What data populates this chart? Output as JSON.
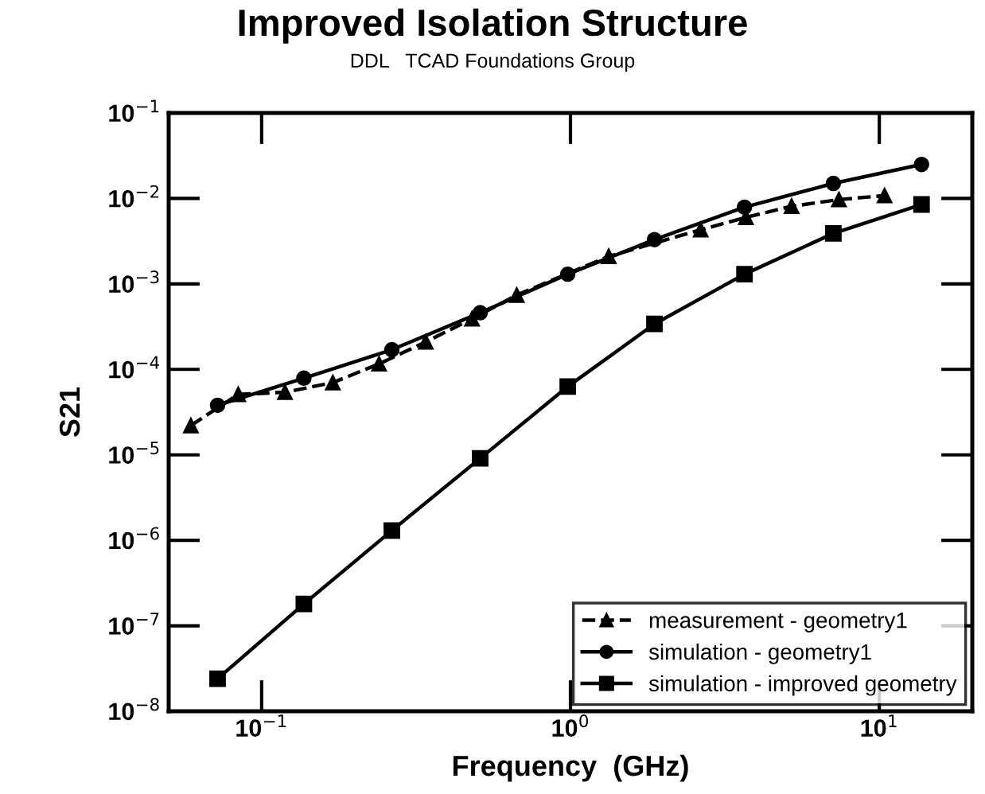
{
  "chart_data": {
    "type": "line",
    "title": "Improved Isolation Structure",
    "subtitle": "DDL   TCAD Foundations Group",
    "xlabel": "Frequency  (GHz)",
    "ylabel": "S21",
    "log": "xy",
    "grid": false,
    "legend": "bottom right",
    "xlim": [
      0.05,
      20
    ],
    "ylim": [
      1e-08,
      0.1
    ],
    "xticks": [
      {
        "value": 0.1,
        "label": "10$^{−1}$"
      },
      {
        "value": 1,
        "label": "10$^{0}$"
      },
      {
        "value": 10,
        "label": "10$^{1}$"
      }
    ],
    "yticks": [
      {
        "value": 1e-08,
        "label": "10$^{−8}$"
      },
      {
        "value": 1e-07,
        "label": "10$^{−7}$"
      },
      {
        "value": 1e-06,
        "label": "10$^{−6}$"
      },
      {
        "value": 1e-05,
        "label": "10$^{−5}$"
      },
      {
        "value": 0.0001,
        "label": "10$^{−4}$"
      },
      {
        "value": 0.001,
        "label": "10$^{−3}$"
      },
      {
        "value": 0.01,
        "label": "10$^{−2}$"
      },
      {
        "value": 0.1,
        "label": "10$^{−1}$"
      }
    ],
    "series": [
      {
        "name": "measurement - geometry1",
        "color": "#000000",
        "marker": "triangle",
        "line_style": "dashed",
        "x": [
          0.059,
          0.084,
          0.119,
          0.17,
          0.24,
          0.34,
          0.48,
          0.67,
          1.33,
          2.64,
          3.7,
          5.2,
          7.4,
          10.4
        ],
        "values": [
          2.2e-05,
          5.1e-05,
          5.4e-05,
          7e-05,
          0.000116,
          0.00021,
          0.00039,
          0.00074,
          0.0021,
          0.0043,
          0.006,
          0.0081,
          0.0097,
          0.0108
        ]
      },
      {
        "name": "simulation - geometry1",
        "color": "#000000",
        "marker": "circle",
        "line_style": "solid",
        "x": [
          0.072,
          0.137,
          0.264,
          0.51,
          0.98,
          1.87,
          3.66,
          7.1,
          13.7
        ],
        "values": [
          3.8e-05,
          7.9e-05,
          0.00017,
          0.00046,
          0.0013,
          0.0033,
          0.0079,
          0.015,
          0.025
        ]
      },
      {
        "name": "simulation - improved geometry",
        "color": "#000000",
        "marker": "square",
        "line_style": "solid",
        "x": [
          0.072,
          0.137,
          0.264,
          0.51,
          0.98,
          1.87,
          3.66,
          7.1,
          13.7
        ],
        "values": [
          2.4e-08,
          1.8e-07,
          1.3e-06,
          9.1e-06,
          6.3e-05,
          0.00034,
          0.0013,
          0.0039,
          0.0085
        ]
      }
    ]
  }
}
